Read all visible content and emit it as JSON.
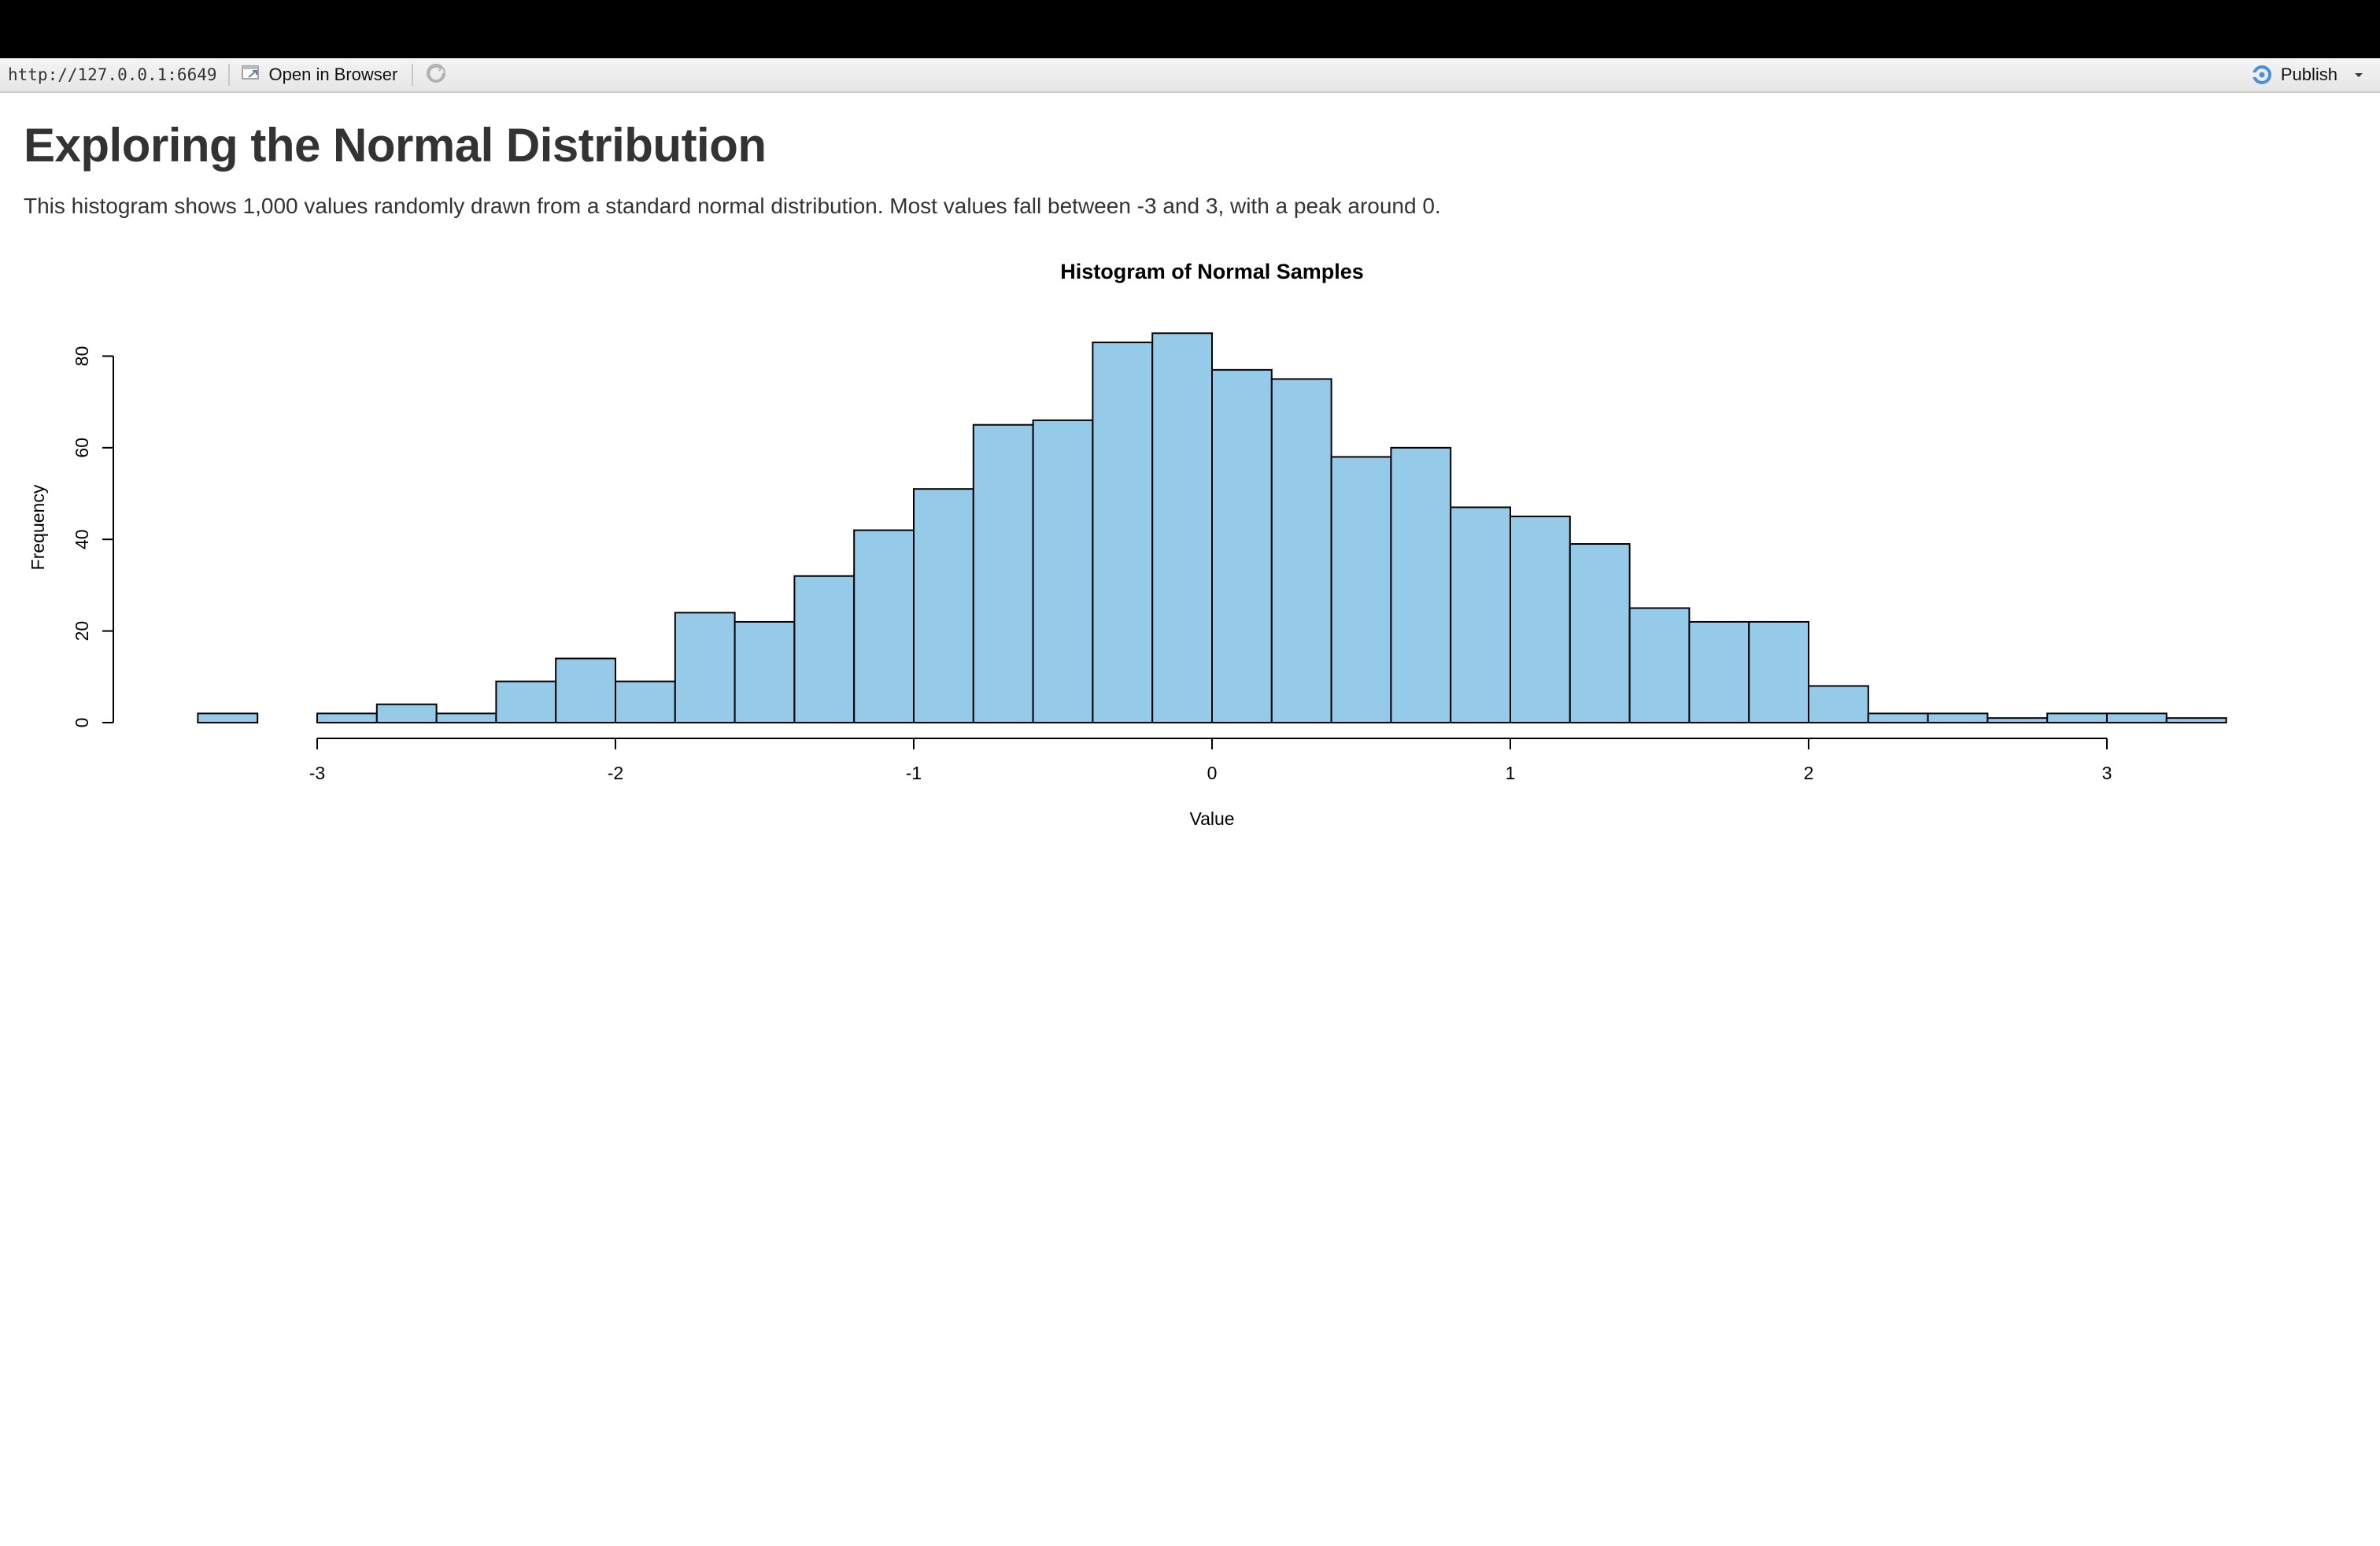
{
  "toolbar": {
    "url": "http://127.0.0.1:6649",
    "open_in_browser": "Open in Browser",
    "publish": "Publish",
    "icons": [
      "open-in-browser-icon",
      "refresh-icon",
      "publish-icon",
      "chevron-down-icon"
    ]
  },
  "page": {
    "title": "Exploring the Normal Distribution",
    "description": "This histogram shows 1,000 values randomly drawn from a standard normal distribution. Most values fall between -3 and 3, with a peak around 0."
  },
  "chart_data": {
    "type": "bar",
    "title": "Histogram of Normal Samples",
    "xlabel": "Value",
    "ylabel": "Frequency",
    "bin_width": 0.2,
    "bin_starts": [
      -3.4,
      -3.2,
      -3.0,
      -2.8,
      -2.6,
      -2.4,
      -2.2,
      -2.0,
      -1.8,
      -1.6,
      -1.4,
      -1.2,
      -1.0,
      -0.8,
      -0.6,
      -0.4,
      -0.2,
      0.0,
      0.2,
      0.4,
      0.6,
      0.8,
      1.0,
      1.2,
      1.4,
      1.6,
      1.8,
      2.0,
      2.2,
      2.4,
      2.6,
      2.8,
      3.0,
      3.2
    ],
    "values": [
      2,
      0,
      2,
      4,
      2,
      9,
      14,
      9,
      24,
      22,
      32,
      42,
      51,
      65,
      66,
      83,
      85,
      77,
      75,
      58,
      60,
      47,
      45,
      39,
      25,
      22,
      22,
      8,
      2,
      2,
      1,
      2,
      2,
      1
    ],
    "xlim": [
      -3.4,
      3.4
    ],
    "ylim": [
      0,
      85
    ],
    "x_ticks": [
      -3,
      -2,
      -1,
      0,
      1,
      2,
      3
    ],
    "x_tick_labels": [
      "-3",
      "-2",
      "-1",
      "0",
      "1",
      "2",
      "3"
    ],
    "y_ticks": [
      0,
      20,
      40,
      60,
      80
    ],
    "y_tick_labels": [
      "0",
      "20",
      "40",
      "60",
      "80"
    ],
    "bar_color": "#95cbe8",
    "bar_border": "#000000",
    "grid": false
  }
}
